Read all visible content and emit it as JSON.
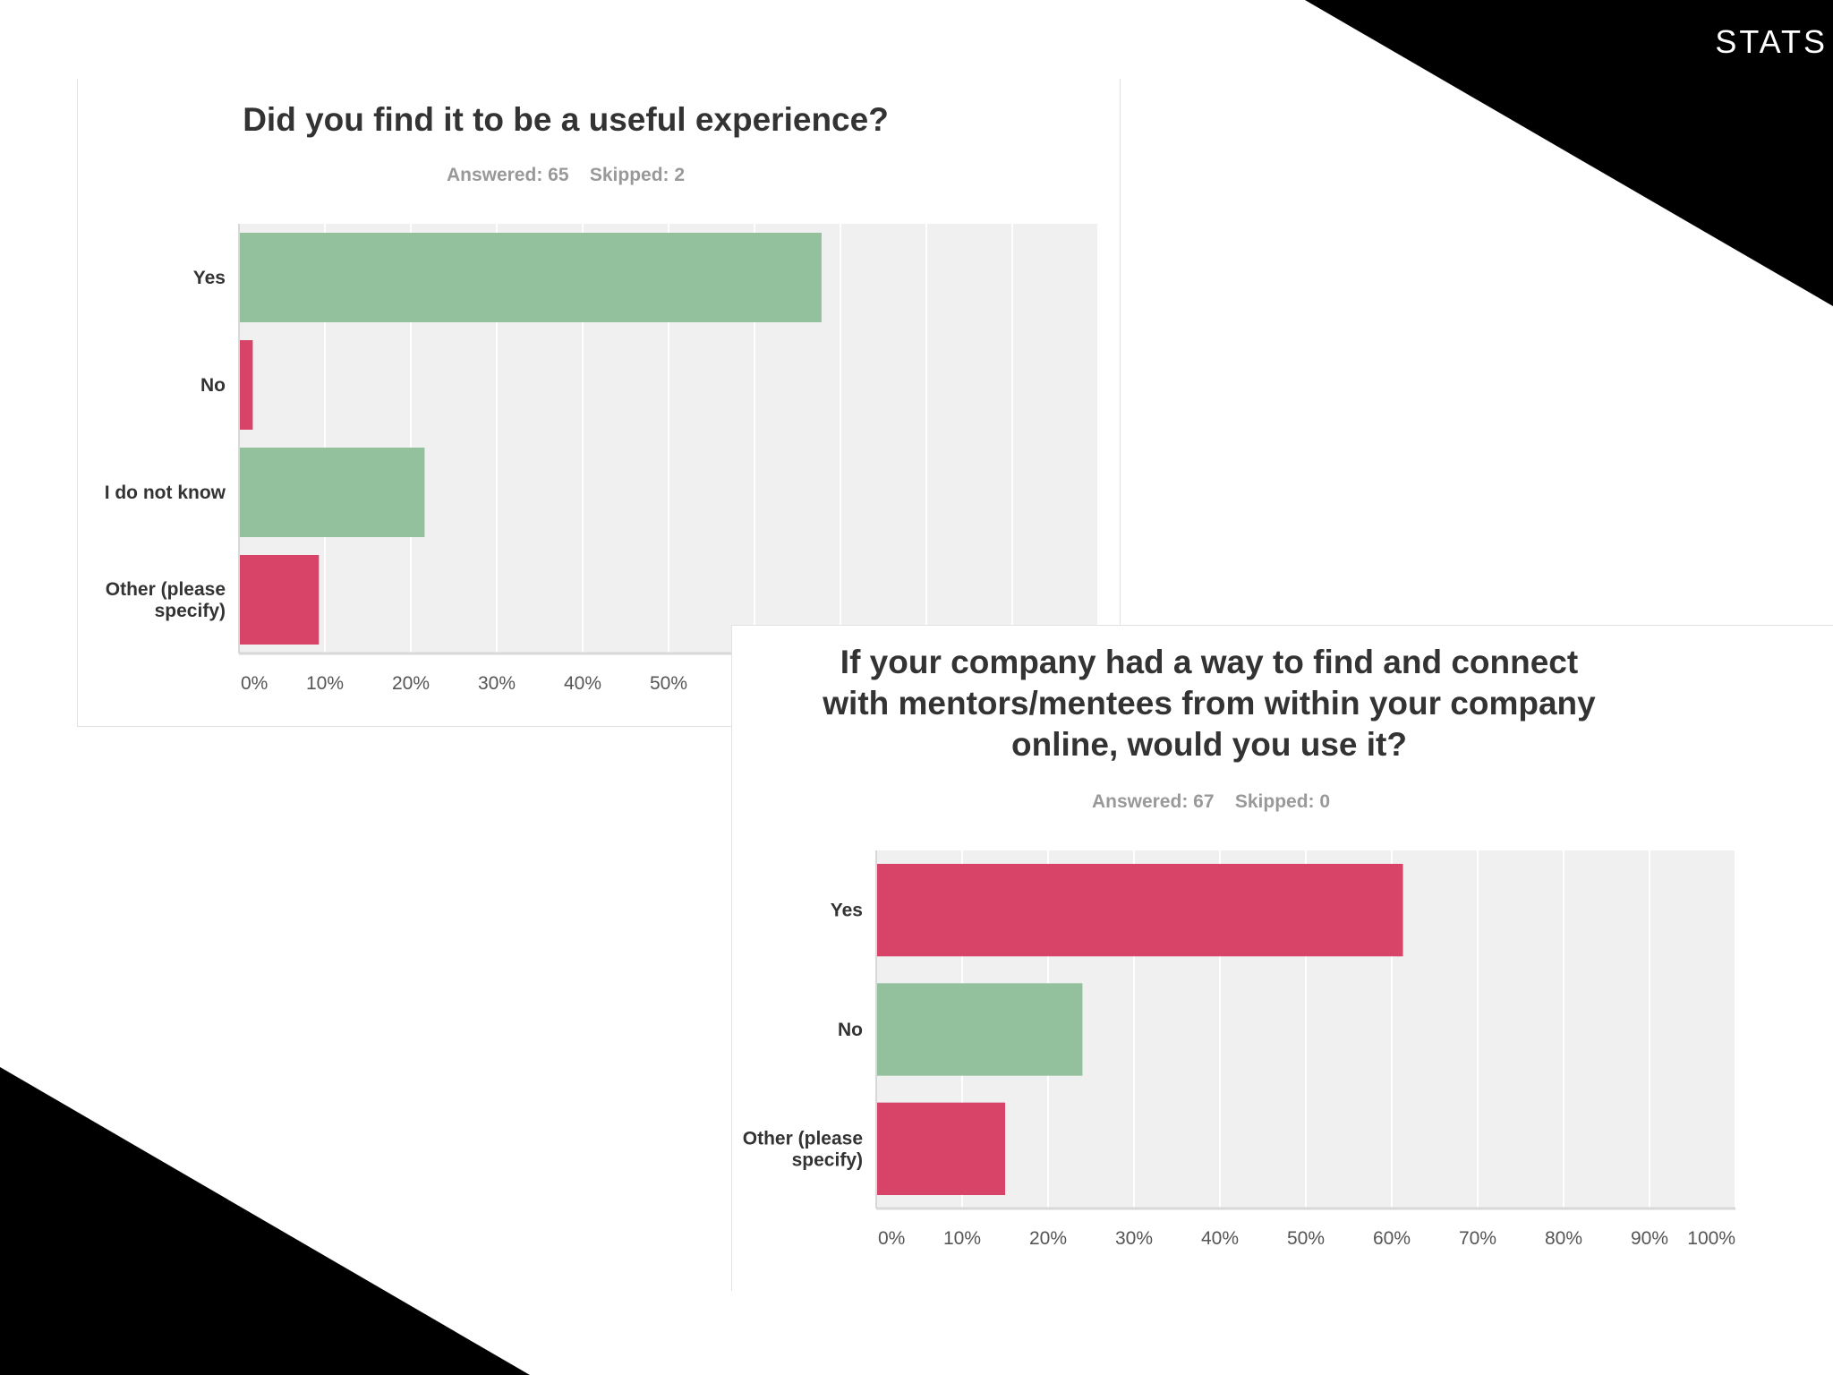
{
  "slide": {
    "label": "STATS"
  },
  "theme": {
    "green": "#93c19d",
    "pink": "#d84368",
    "plot_bg": "#f0f0f0",
    "grid": "#ffffff"
  },
  "chart_data": [
    {
      "type": "bar",
      "orientation": "horizontal",
      "title": "Did you find it to be a useful experience?",
      "subtitle": "Answered: 65    Skipped: 2",
      "categories": [
        "Yes",
        "No",
        "I do not know",
        "Other (please specify)"
      ],
      "values": [
        67.7,
        1.5,
        21.5,
        9.2
      ],
      "bar_colors": [
        "green",
        "pink",
        "green",
        "pink"
      ],
      "xlim": [
        0,
        100
      ],
      "x_ticks": [
        "0%",
        "10%",
        "20%",
        "30%",
        "40%",
        "50%"
      ],
      "grid": true
    },
    {
      "type": "bar",
      "orientation": "horizontal",
      "title": "If your company had a way to find and connect with mentors/mentees from within your company online, would you use it?",
      "subtitle": "Answered: 67    Skipped: 0",
      "categories": [
        "Yes",
        "No",
        "Other (please specify)"
      ],
      "values": [
        61.2,
        23.9,
        14.9
      ],
      "bar_colors": [
        "pink",
        "green",
        "pink"
      ],
      "xlim": [
        0,
        100
      ],
      "x_ticks": [
        "0%",
        "10%",
        "20%",
        "30%",
        "40%",
        "50%",
        "60%",
        "70%",
        "80%",
        "90%",
        "100%"
      ],
      "grid": true
    }
  ]
}
